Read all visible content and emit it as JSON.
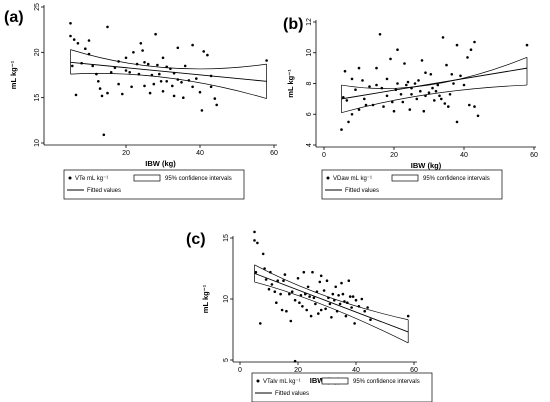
{
  "chart_data": [
    {
      "type": "scatter",
      "panel_label": "(a)",
      "title": "",
      "xlabel": "IBW (kg)",
      "ylabel": "mL kg⁻¹",
      "xlim": [
        0,
        60
      ],
      "ylim": [
        10,
        25
      ],
      "xticks": [
        20,
        40,
        60
      ],
      "yticks": [
        10,
        15,
        20,
        25
      ],
      "grid": false,
      "points": [
        [
          5,
          23.2
        ],
        [
          5,
          21.8
        ],
        [
          5.5,
          18.5
        ],
        [
          6,
          21.4
        ],
        [
          6.5,
          15.3
        ],
        [
          7,
          21
        ],
        [
          8,
          18.8
        ],
        [
          9,
          20.4
        ],
        [
          10,
          21.3
        ],
        [
          10,
          19.8
        ],
        [
          11,
          18.5
        ],
        [
          12,
          17.6
        ],
        [
          12.5,
          16.8
        ],
        [
          13,
          16
        ],
        [
          13.5,
          15.2
        ],
        [
          14,
          10.9
        ],
        [
          15,
          15.5
        ],
        [
          15,
          22.8
        ],
        [
          16,
          17.8
        ],
        [
          17,
          18.3
        ],
        [
          18,
          19
        ],
        [
          18,
          16.5
        ],
        [
          19,
          15.4
        ],
        [
          20,
          18
        ],
        [
          20,
          19.4
        ],
        [
          21,
          17.8
        ],
        [
          21.5,
          16.2
        ],
        [
          22,
          20
        ],
        [
          23,
          18.7
        ],
        [
          23.5,
          17.6
        ],
        [
          24,
          21
        ],
        [
          24.5,
          20.2
        ],
        [
          25,
          18.9
        ],
        [
          25,
          16.3
        ],
        [
          26,
          18.7
        ],
        [
          26.5,
          15.5
        ],
        [
          27,
          17.5
        ],
        [
          27.5,
          16.5
        ],
        [
          28,
          22
        ],
        [
          28.5,
          18.6
        ],
        [
          29,
          17.6
        ],
        [
          29.5,
          16.8
        ],
        [
          30,
          19.4
        ],
        [
          30,
          15.7
        ],
        [
          31,
          18.4
        ],
        [
          31,
          16.8
        ],
        [
          32,
          18.2
        ],
        [
          32.5,
          16.3
        ],
        [
          33,
          17.7
        ],
        [
          33,
          15.2
        ],
        [
          34,
          20.5
        ],
        [
          34,
          17
        ],
        [
          35,
          16.7
        ],
        [
          35.5,
          15
        ],
        [
          36,
          18.5
        ],
        [
          37,
          16.9
        ],
        [
          38,
          20.8
        ],
        [
          38,
          16.2
        ],
        [
          39,
          17.1
        ],
        [
          40,
          15.6
        ],
        [
          40.5,
          13.6
        ],
        [
          41,
          20.1
        ],
        [
          42,
          19.7
        ],
        [
          43,
          17.4
        ],
        [
          43,
          16.2
        ],
        [
          44,
          14.9
        ],
        [
          44.5,
          14.2
        ],
        [
          58,
          19.1
        ]
      ],
      "fitted": {
        "x": [
          5,
          58
        ],
        "y": [
          18.9,
          16.8
        ]
      },
      "ci_upper": {
        "x": [
          5,
          31,
          58
        ],
        "y": [
          20.3,
          18.3,
          18.7
        ]
      },
      "ci_lower": {
        "x": [
          5,
          31,
          58
        ],
        "y": [
          17.6,
          17.2,
          14.9
        ]
      },
      "legend": {
        "points": "VTe mL kg⁻¹",
        "fitted": "Fitted values",
        "ci": "95% confidence intervals"
      },
      "legend_position": "bottom"
    },
    {
      "type": "scatter",
      "panel_label": "(b)",
      "title": "",
      "xlabel": "IBW (kg)",
      "ylabel": "mL kg⁻¹",
      "xlim": [
        0,
        60
      ],
      "ylim": [
        4,
        12
      ],
      "xticks": [
        0,
        20,
        40,
        60
      ],
      "yticks": [
        4,
        6,
        8,
        10,
        12
      ],
      "grid": false,
      "points": [
        [
          5,
          5
        ],
        [
          5.5,
          7.1
        ],
        [
          6,
          8.8
        ],
        [
          6.5,
          6.9
        ],
        [
          7,
          5.5
        ],
        [
          8,
          8.3
        ],
        [
          8,
          6
        ],
        [
          9,
          7.6
        ],
        [
          10,
          9
        ],
        [
          10,
          6.3
        ],
        [
          11,
          8.2
        ],
        [
          11.5,
          7
        ],
        [
          12,
          6.6
        ],
        [
          13,
          7.8
        ],
        [
          14,
          6.6
        ],
        [
          15,
          7.9
        ],
        [
          15,
          9
        ],
        [
          16,
          11.2
        ],
        [
          16.5,
          7.7
        ],
        [
          17,
          6.5
        ],
        [
          18,
          8.3
        ],
        [
          18,
          7.2
        ],
        [
          19,
          9.6
        ],
        [
          19.5,
          6.8
        ],
        [
          20,
          6.2
        ],
        [
          20.5,
          7.6
        ],
        [
          21,
          10.2
        ],
        [
          21,
          8
        ],
        [
          22,
          7.3
        ],
        [
          22.5,
          6.8
        ],
        [
          23,
          9.3
        ],
        [
          23.5,
          7.9
        ],
        [
          24,
          8.1
        ],
        [
          24.5,
          6.3
        ],
        [
          25,
          7.3
        ],
        [
          25,
          7.7
        ],
        [
          26,
          8
        ],
        [
          26.5,
          7
        ],
        [
          27,
          8.2
        ],
        [
          27.5,
          7.5
        ],
        [
          28,
          9.5
        ],
        [
          28.5,
          6.2
        ],
        [
          29,
          8.7
        ],
        [
          29,
          7.2
        ],
        [
          30,
          7.4
        ],
        [
          30.5,
          8.6
        ],
        [
          31,
          7.7
        ],
        [
          31.5,
          6.9
        ],
        [
          32,
          7.5
        ],
        [
          32.5,
          7.9
        ],
        [
          33,
          7.2
        ],
        [
          33.5,
          7
        ],
        [
          34,
          11
        ],
        [
          34.5,
          6.7
        ],
        [
          35,
          9.2
        ],
        [
          35.5,
          6.5
        ],
        [
          36,
          7.3
        ],
        [
          36.5,
          8.6
        ],
        [
          37,
          8
        ],
        [
          38,
          10.5
        ],
        [
          38,
          5.5
        ],
        [
          39,
          8.5
        ],
        [
          40,
          7.9
        ],
        [
          41,
          9.7
        ],
        [
          41.5,
          6.6
        ],
        [
          42,
          10.2
        ],
        [
          43,
          10.7
        ],
        [
          43,
          6.5
        ],
        [
          44,
          5.9
        ],
        [
          58,
          10.5
        ]
      ],
      "fitted": {
        "x": [
          5,
          58
        ],
        "y": [
          7.0,
          9.0
        ]
      },
      "ci_upper": {
        "x": [
          5,
          30,
          58
        ],
        "y": [
          7.9,
          7.9,
          9.7
        ]
      },
      "ci_lower": {
        "x": [
          5,
          30,
          58
        ],
        "y": [
          6.1,
          7.3,
          7.9
        ]
      },
      "legend": {
        "points": "VDaw mL kg⁻¹",
        "fitted": "Fitted values",
        "ci": "95% confidence intervals"
      },
      "legend_position": "bottom"
    },
    {
      "type": "scatter",
      "panel_label": "(c)",
      "title": "",
      "xlabel": "IBW (kg)",
      "ylabel": "mL kg⁻¹",
      "xlim": [
        0,
        60
      ],
      "ylim": [
        5,
        15
      ],
      "xticks": [
        0,
        20,
        40,
        60
      ],
      "yticks": [
        5,
        10,
        15
      ],
      "grid": false,
      "points": [
        [
          5,
          15.5
        ],
        [
          5,
          14.8
        ],
        [
          5.5,
          12.2
        ],
        [
          6,
          14.6
        ],
        [
          7,
          8
        ],
        [
          8,
          13.7
        ],
        [
          8.5,
          12.5
        ],
        [
          9,
          11.6
        ],
        [
          10,
          10.8
        ],
        [
          10.5,
          12.2
        ],
        [
          11,
          11.2
        ],
        [
          12,
          10.6
        ],
        [
          12.5,
          9.7
        ],
        [
          13,
          11.5
        ],
        [
          14,
          10.4
        ],
        [
          14.5,
          9.1
        ],
        [
          15,
          11.5
        ],
        [
          15.5,
          12
        ],
        [
          16,
          9
        ],
        [
          17,
          10.4
        ],
        [
          17.5,
          8.2
        ],
        [
          18,
          10.6
        ],
        [
          19,
          9.9
        ],
        [
          19,
          4.9
        ],
        [
          20,
          11.7
        ],
        [
          20.5,
          9.7
        ],
        [
          21,
          10.3
        ],
        [
          21.5,
          9.4
        ],
        [
          22,
          12.2
        ],
        [
          22.5,
          10.4
        ],
        [
          23,
          9.1
        ],
        [
          23.5,
          11
        ],
        [
          24,
          10.2
        ],
        [
          24.5,
          8.6
        ],
        [
          25,
          12.2
        ],
        [
          25.5,
          10.1
        ],
        [
          26,
          9.6
        ],
        [
          26.5,
          10.6
        ],
        [
          27,
          8.8
        ],
        [
          27.5,
          11.4
        ],
        [
          28,
          11.9
        ],
        [
          28,
          9.1
        ],
        [
          29,
          10.7
        ],
        [
          29.5,
          9.2
        ],
        [
          30,
          11.5
        ],
        [
          30.5,
          10.1
        ],
        [
          31,
          9.6
        ],
        [
          31.5,
          8.5
        ],
        [
          32,
          10.4
        ],
        [
          32.5,
          9.9
        ],
        [
          33,
          11
        ],
        [
          33.5,
          9
        ],
        [
          34,
          10.3
        ],
        [
          34.5,
          9.6
        ],
        [
          35,
          11.3
        ],
        [
          35.5,
          10.4
        ],
        [
          36,
          9.8
        ],
        [
          36.5,
          8.6
        ],
        [
          37,
          9.7
        ],
        [
          37.5,
          11.5
        ],
        [
          38,
          10.2
        ],
        [
          38.5,
          9.3
        ],
        [
          39,
          10.2
        ],
        [
          39.5,
          8
        ],
        [
          40,
          9.9
        ],
        [
          41,
          9.4
        ],
        [
          42,
          10
        ],
        [
          43,
          9
        ],
        [
          44,
          9.3
        ],
        [
          45,
          8.3
        ],
        [
          58,
          8.6
        ]
      ],
      "fitted": {
        "x": [
          5,
          58
        ],
        "y": [
          12.1,
          7.3
        ]
      },
      "ci_upper": {
        "x": [
          5,
          30,
          58
        ],
        "y": [
          12.8,
          10.2,
          8.3
        ]
      },
      "ci_lower": {
        "x": [
          5,
          30,
          58
        ],
        "y": [
          11.4,
          9.4,
          6.4
        ]
      },
      "legend": {
        "points": "VTalv mL kg⁻¹",
        "fitted": "Fitted values",
        "ci": "95% confidence intervals"
      },
      "legend_position": "bottom"
    }
  ]
}
